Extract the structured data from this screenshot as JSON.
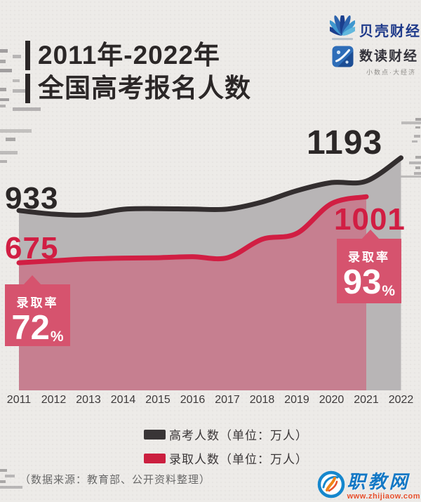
{
  "header": {
    "title_line1": "2011年-2022年",
    "title_line2": "全国高考报名人数"
  },
  "brands": {
    "beike_name": "贝壳财经",
    "shudu_name": "数读财经",
    "shudu_tagline": "小数点·大经济"
  },
  "chart_data": {
    "type": "area",
    "title": "2011年-2022年全国高考报名人数",
    "categories": [
      "2011",
      "2012",
      "2013",
      "2014",
      "2015",
      "2016",
      "2017",
      "2018",
      "2019",
      "2020",
      "2021",
      "2022"
    ],
    "series": [
      {
        "name": "高考人数",
        "unit": "万人",
        "color": "#332e2f",
        "area_color": "#b8b5b6",
        "values": [
          933,
          915,
          912,
          939,
          942,
          940,
          940,
          975,
          1031,
          1071,
          1078,
          1193
        ]
      },
      {
        "name": "录取人数",
        "unit": "万人",
        "color": "#d11e43",
        "area_color": "#c67f90",
        "values": [
          675,
          685,
          694,
          698,
          700,
          705,
          700,
          791,
          820,
          967,
          1001,
          null
        ]
      }
    ],
    "point_labels": {
      "exam_2011": "933",
      "exam_2022": "1193",
      "admit_2011": "675",
      "admit_2021": "1001"
    },
    "badges": [
      {
        "year": "2011",
        "label": "录取率",
        "value": "72",
        "unit": "%"
      },
      {
        "year": "2021",
        "label": "录取率",
        "value": "93",
        "unit": "%"
      }
    ],
    "ylim": [
      600,
      1250
    ],
    "grid": false,
    "legend_position": "bottom"
  },
  "legend": [
    {
      "label": "高考人数（单位：万人）",
      "color": "#393536"
    },
    {
      "label": "录取人数（单位：万人）",
      "color": "#cb1f3f"
    }
  ],
  "footer": {
    "source_note": "（数据来源：教育部、公开资料整理）"
  },
  "watermark": {
    "name": "职教网",
    "url": "www.zhijiaow.com"
  },
  "colors": {
    "background": "#edebe8",
    "ink_black": "#2b2727",
    "exam_line": "#332e2f",
    "exam_area": "#b8b5b6",
    "admit_line": "#d11e43",
    "admit_area": "#c67f90",
    "badge_pink": "#d6536e",
    "axis_text": "#3d3a3b",
    "source_text": "#696969",
    "brand_navy": "#1f3a8a",
    "watermark_blue": "#1478c5",
    "watermark_orange": "#e8512e"
  }
}
